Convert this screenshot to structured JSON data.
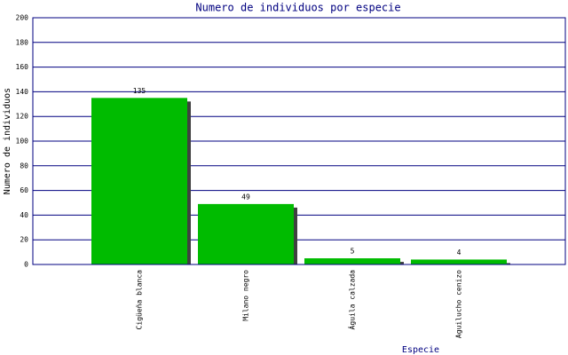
{
  "chart_data": {
    "type": "bar",
    "title": "Numero de individuos por especie",
    "x_label": "Especie",
    "y_label": "Numero de individuos",
    "categories": [
      "Cigüeña blanca",
      "Milano negro",
      "Águila calzada",
      "Aguilucho cenizo"
    ],
    "values": [
      135,
      49,
      5,
      4
    ],
    "color": "#00bb00",
    "ylim": [
      0,
      200
    ],
    "yticks": [
      0,
      20,
      40,
      60,
      80,
      100,
      120,
      140,
      160,
      180,
      200
    ],
    "grid": true
  }
}
